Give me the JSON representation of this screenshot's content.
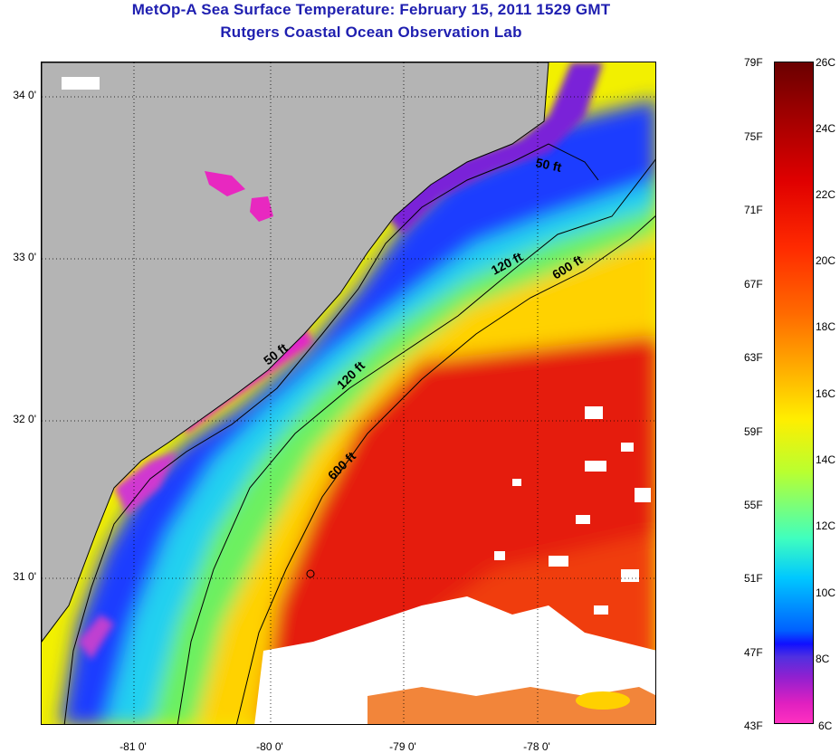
{
  "header": {
    "title": "MetOp-A Sea Surface Temperature:  February 15, 2011 1529 GMT",
    "subtitle": "Rutgers Coastal Ocean Observation Lab"
  },
  "map": {
    "lat_labels": [
      "34 0'",
      "33 0'",
      "32 0'",
      "31 0'"
    ],
    "lon_labels": [
      "-81 0'",
      "-80 0'",
      "-79 0'",
      "-78 0'"
    ],
    "contour_labels": [
      "50 ft",
      "120 ft",
      "600 ft",
      "50 ft",
      "120 ft",
      "600 ft"
    ],
    "colors": {
      "land": "#b4b4b4",
      "warm": "#e00000",
      "mid": "#ffee00",
      "cool": "#00c8ff",
      "cold": "#1010ff",
      "coldest": "#8a1fd0",
      "cloud": "#ffffff"
    }
  },
  "colorbar": {
    "fahrenheit_labels": [
      "79F",
      "75F",
      "71F",
      "67F",
      "63F",
      "59F",
      "55F",
      "51F",
      "47F",
      "43F"
    ],
    "celsius_labels": [
      "26C",
      "24C",
      "22C",
      "20C",
      "18C",
      "16C",
      "14C",
      "12C",
      "10C",
      "8C",
      "6C"
    ]
  }
}
